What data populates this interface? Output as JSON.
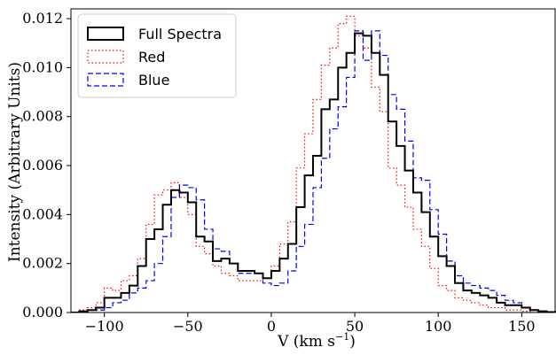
{
  "chart_data": {
    "type": "line",
    "style": "step-histogram",
    "xlabel": "V (km s",
    "xlabel_sup": "−1",
    "xlabel_close": ")",
    "ylabel": "Intensity (Arbitrary Units)",
    "xlim": [
      -120,
      170
    ],
    "ylim": [
      0,
      0.0124
    ],
    "xticks": [
      -100,
      -50,
      0,
      50,
      100,
      150
    ],
    "xtick_labels": [
      "−100",
      "−50",
      "0",
      "50",
      "100",
      "150"
    ],
    "yticks": [
      0,
      0.002,
      0.004,
      0.006,
      0.008,
      0.01,
      0.012
    ],
    "ytick_labels": [
      "0.000",
      "0.002",
      "0.004",
      "0.006",
      "0.008",
      "0.010",
      "0.012"
    ],
    "legend_position": "top-left",
    "bin_edges": [
      -120,
      -115,
      -110,
      -105,
      -100,
      -95,
      -90,
      -85,
      -80,
      -75,
      -70,
      -65,
      -60,
      -55,
      -50,
      -45,
      -40,
      -35,
      -30,
      -25,
      -20,
      -15,
      -10,
      -5,
      0,
      5,
      10,
      15,
      20,
      25,
      30,
      35,
      40,
      45,
      50,
      55,
      60,
      65,
      70,
      75,
      80,
      85,
      90,
      95,
      100,
      105,
      110,
      115,
      120,
      125,
      130,
      135,
      140,
      145,
      150,
      155,
      160,
      165,
      170
    ],
    "series": [
      {
        "name": "Full Spectra",
        "color": "#000000",
        "dash": "solid",
        "values": [
          0,
          5e-05,
          0.0001,
          0.0002,
          0.0006,
          0.0006,
          0.0008,
          0.0011,
          0.0019,
          0.003,
          0.0034,
          0.0044,
          0.005,
          0.0049,
          0.0045,
          0.0031,
          0.0029,
          0.0021,
          0.0022,
          0.002,
          0.0017,
          0.0017,
          0.0016,
          0.0014,
          0.0017,
          0.0022,
          0.0028,
          0.0043,
          0.0056,
          0.0064,
          0.0083,
          0.0087,
          0.01,
          0.0106,
          0.0114,
          0.0113,
          0.0106,
          0.0097,
          0.0078,
          0.0068,
          0.0058,
          0.0049,
          0.0041,
          0.0031,
          0.0023,
          0.0019,
          0.0012,
          0.0009,
          0.0008,
          0.0007,
          0.0006,
          0.0004,
          0.0003,
          0.0003,
          0.0002,
          0.0001,
          5e-05,
          2e-05
        ]
      },
      {
        "name": "Red",
        "color": "#ff0000",
        "dash": "dotted",
        "values": [
          0,
          0.0001,
          0.0002,
          0.0004,
          0.001,
          0.0009,
          0.0013,
          0.0015,
          0.0022,
          0.0036,
          0.0048,
          0.005,
          0.0053,
          0.0047,
          0.004,
          0.0027,
          0.0024,
          0.0019,
          0.0016,
          0.0015,
          0.0013,
          0.0013,
          0.0013,
          0.0014,
          0.0019,
          0.0028,
          0.0037,
          0.0059,
          0.0073,
          0.0087,
          0.0101,
          0.0108,
          0.0118,
          0.0121,
          0.0113,
          0.0108,
          0.0092,
          0.0082,
          0.0059,
          0.0052,
          0.0043,
          0.0034,
          0.0027,
          0.0018,
          0.0011,
          0.0009,
          0.0006,
          0.0005,
          0.0004,
          0.0003,
          0.0002,
          0.0002,
          0.0001,
          0.0001,
          5e-05,
          0,
          0,
          0
        ]
      },
      {
        "name": "Blue",
        "color": "#0000ff",
        "dash": "dashed",
        "values": [
          0,
          0,
          0.0001,
          0.0001,
          0.0002,
          0.0004,
          0.0005,
          0.0008,
          0.001,
          0.0013,
          0.002,
          0.0031,
          0.0047,
          0.0052,
          0.0051,
          0.0046,
          0.0034,
          0.0026,
          0.0025,
          0.002,
          0.0016,
          0.0016,
          0.0016,
          0.0012,
          0.0011,
          0.0012,
          0.0017,
          0.0027,
          0.0036,
          0.0051,
          0.0063,
          0.0075,
          0.0084,
          0.0096,
          0.0115,
          0.0103,
          0.0115,
          0.0105,
          0.0089,
          0.0083,
          0.007,
          0.0055,
          0.0054,
          0.0042,
          0.0032,
          0.0021,
          0.0015,
          0.0012,
          0.0011,
          0.001,
          0.0009,
          0.0007,
          0.0005,
          0.0004,
          0.0002,
          0.0001,
          5e-05,
          2e-05
        ]
      }
    ]
  }
}
